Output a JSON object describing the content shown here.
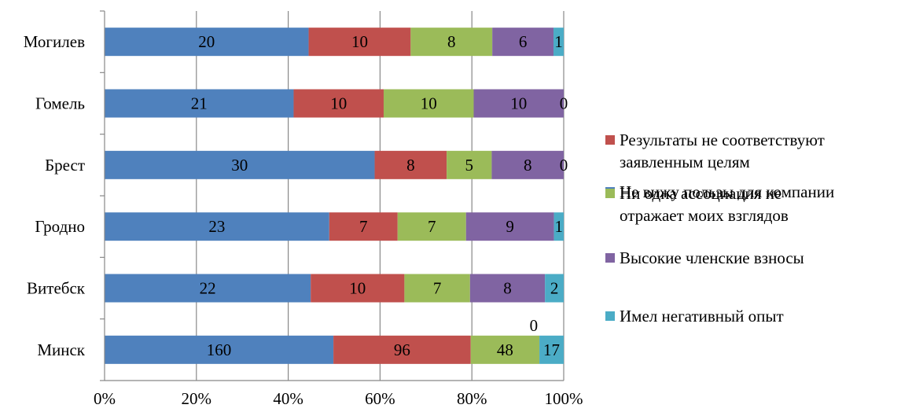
{
  "chart_data": {
    "type": "bar",
    "orientation": "horizontal",
    "stacked": "percent",
    "title": "",
    "xlabel": "",
    "ylabel": "",
    "xlim": [
      0,
      100
    ],
    "x_ticks": [
      "0%",
      "20%",
      "40%",
      "60%",
      "80%",
      "100%"
    ],
    "grid": "vertical",
    "legend_position": "right",
    "categories": [
      "Минск",
      "Витебск",
      "Гродно",
      "Брест",
      "Гомель",
      "Могилев"
    ],
    "series": [
      {
        "name": "Не вижу пользы для компании",
        "color": "#4f81bd",
        "values": [
          160,
          22,
          23,
          30,
          21,
          20
        ]
      },
      {
        "name": "Результаты не соответствуют заявленным целям",
        "color": "#c0504d",
        "values": [
          96,
          10,
          7,
          8,
          10,
          10
        ]
      },
      {
        "name": "Ни одна ассоциация не отражает моих взглядов",
        "color": "#9bbb59",
        "values": [
          48,
          7,
          7,
          5,
          10,
          8
        ]
      },
      {
        "name": "Высокие членские взносы",
        "color": "#8064a2",
        "values": [
          0,
          8,
          9,
          8,
          10,
          6
        ]
      },
      {
        "name": "Имел негативный опыт",
        "color": "#4bacc6",
        "values": [
          17,
          2,
          1,
          0,
          0,
          1
        ]
      }
    ]
  },
  "legend": {
    "items": [
      {
        "label": "Не вижу пользы для компании",
        "color": "#4f81bd"
      },
      {
        "label": "Результаты не соответствуют\nзаявленным целям",
        "color": "#c0504d"
      },
      {
        "label": "Ни одна ассоциация не\nотражает моих взглядов",
        "color": "#9bbb59"
      },
      {
        "label": "Высокие членские взносы",
        "color": "#8064a2"
      },
      {
        "label": "Имел негативный опыт",
        "color": "#4bacc6"
      }
    ]
  }
}
